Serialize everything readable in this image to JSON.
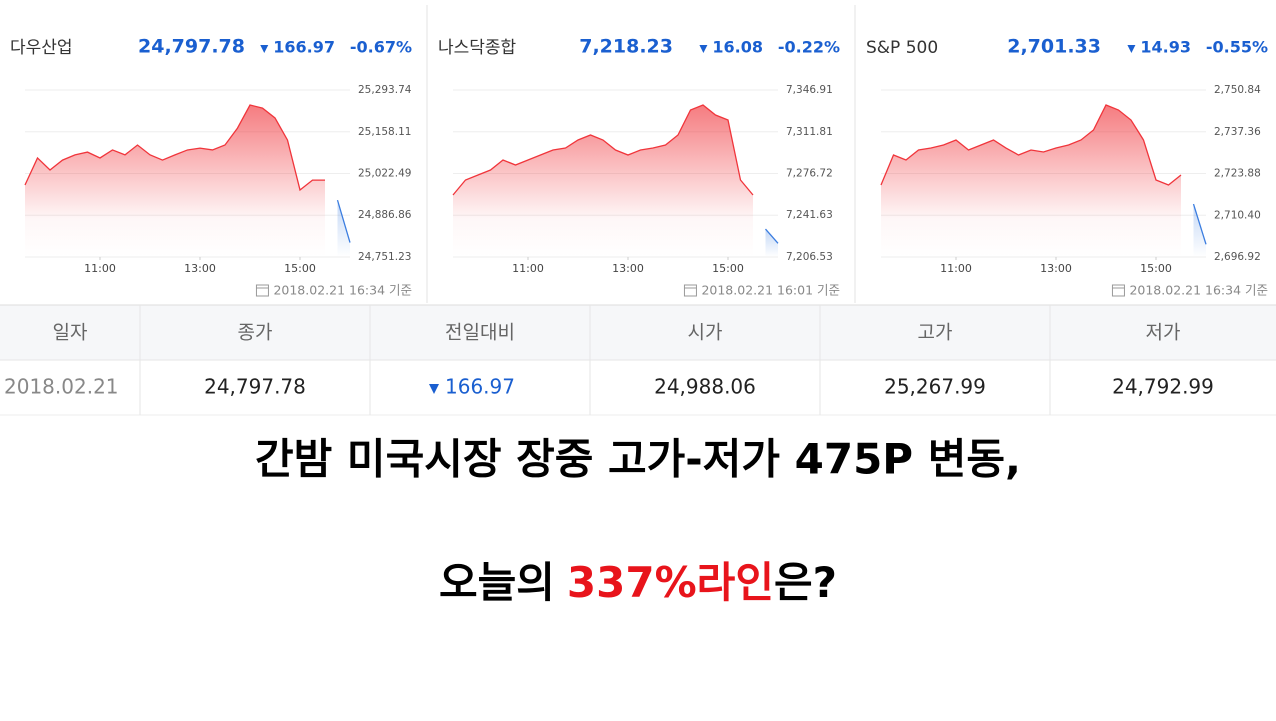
{
  "chart_data": [
    {
      "type": "line",
      "title": "다우산업",
      "price": "24,797.78",
      "change": "166.97",
      "change_pct": "-0.67%",
      "timestamp": "2018.02.21 16:34 기준",
      "x": [
        9.5,
        9.75,
        10,
        10.25,
        10.5,
        10.75,
        11,
        11.25,
        11.5,
        11.75,
        12,
        12.25,
        12.5,
        12.75,
        13,
        13.25,
        13.5,
        13.75,
        14,
        14.25,
        14.5,
        14.75,
        15,
        15.25,
        15.5,
        15.75,
        16
      ],
      "series": [
        {
          "color": "#f0353b",
          "values": [
            24985,
            25073,
            25034,
            25066,
            25083,
            25092,
            25073,
            25099,
            25083,
            25115,
            25083,
            25066,
            25083,
            25099,
            25105,
            25099,
            25115,
            25170,
            25245,
            25235,
            25203,
            25131,
            24969,
            25001,
            25001,
            null,
            null
          ]
        },
        {
          "color": "#3b7de0",
          "values": [
            null,
            null,
            null,
            null,
            null,
            null,
            null,
            null,
            null,
            null,
            null,
            null,
            null,
            null,
            null,
            null,
            null,
            null,
            null,
            null,
            null,
            null,
            null,
            null,
            null,
            24936,
            24798
          ]
        }
      ],
      "xlim": [
        9.5,
        16
      ],
      "xticks": [
        {
          "value": 11,
          "label": "11:00"
        },
        {
          "value": 13,
          "label": "13:00"
        },
        {
          "value": 15,
          "label": "15:00"
        }
      ],
      "ylim": [
        24751.23,
        25293.74
      ],
      "yticks": [
        {
          "value": 24751.23,
          "label": "24,751.23"
        },
        {
          "value": 24886.86,
          "label": "24,886.86"
        },
        {
          "value": 25022.49,
          "label": "25,022.49"
        },
        {
          "value": 25158.11,
          "label": "25,158.11"
        },
        {
          "value": 25293.74,
          "label": "25,293.74"
        }
      ],
      "grid": true
    },
    {
      "type": "line",
      "title": "나스닥종합",
      "price": "7,218.23",
      "change": "16.08",
      "change_pct": "-0.22%",
      "timestamp": "2018.02.21 16:01 기준",
      "x": [
        9.5,
        9.75,
        10,
        10.25,
        10.5,
        10.75,
        11,
        11.25,
        11.5,
        11.75,
        12,
        12.25,
        12.5,
        12.75,
        13,
        13.25,
        13.5,
        13.75,
        14,
        14.25,
        14.5,
        14.75,
        15,
        15.25,
        15.5,
        15.75,
        16
      ],
      "series": [
        {
          "color": "#f0353b",
          "values": [
            7258.64,
            7271.25,
            7275.45,
            7279.65,
            7288.06,
            7283.86,
            7288.06,
            7292.26,
            7296.47,
            7298.15,
            7304.87,
            7309.08,
            7304.87,
            7296.47,
            7292.26,
            7296.47,
            7298.15,
            7300.67,
            7309.08,
            7330.1,
            7334.3,
            7325.89,
            7321.69,
            7271.25,
            7258.64,
            null,
            null
          ]
        },
        {
          "color": "#3b7de0",
          "values": [
            null,
            null,
            null,
            null,
            null,
            null,
            null,
            null,
            null,
            null,
            null,
            null,
            null,
            null,
            null,
            null,
            null,
            null,
            null,
            null,
            null,
            null,
            null,
            null,
            null,
            7230,
            7218
          ]
        }
      ],
      "xlim": [
        9.5,
        16
      ],
      "xticks": [
        {
          "value": 11,
          "label": "11:00"
        },
        {
          "value": 13,
          "label": "13:00"
        },
        {
          "value": 15,
          "label": "15:00"
        }
      ],
      "ylim": [
        7206.53,
        7346.91
      ],
      "yticks": [
        {
          "value": 7206.53,
          "label": "7,206.53"
        },
        {
          "value": 7241.63,
          "label": "7,241.63"
        },
        {
          "value": 7276.72,
          "label": "7,276.72"
        },
        {
          "value": 7311.81,
          "label": "7,311.81"
        },
        {
          "value": 7346.91,
          "label": "7,346.91"
        }
      ],
      "grid": true
    },
    {
      "type": "line",
      "title": "S&P 500",
      "price": "2,701.33",
      "change": "14.93",
      "change_pct": "-0.55%",
      "timestamp": "2018.02.21 16:34 기준",
      "x": [
        9.5,
        9.75,
        10,
        10.25,
        10.5,
        10.75,
        11,
        11.25,
        11.5,
        11.75,
        12,
        12.25,
        12.5,
        12.75,
        13,
        13.25,
        13.5,
        13.75,
        14,
        14.25,
        14.5,
        14.75,
        15,
        15.25,
        15.5,
        15.75,
        16
      ],
      "series": [
        {
          "color": "#f0353b",
          "values": [
            2720.17,
            2729.85,
            2728.24,
            2731.47,
            2732.11,
            2733.08,
            2734.7,
            2731.47,
            2733.08,
            2734.7,
            2732.11,
            2729.85,
            2731.47,
            2730.82,
            2732.11,
            2733.08,
            2734.7,
            2737.93,
            2746,
            2744.38,
            2741.15,
            2734.7,
            2721.78,
            2720.17,
            2723.39,
            null,
            null
          ]
        },
        {
          "color": "#3b7de0",
          "values": [
            null,
            null,
            null,
            null,
            null,
            null,
            null,
            null,
            null,
            null,
            null,
            null,
            null,
            null,
            null,
            null,
            null,
            null,
            null,
            null,
            null,
            null,
            null,
            null,
            null,
            2714,
            2701
          ]
        }
      ],
      "xlim": [
        9.5,
        16
      ],
      "xticks": [
        {
          "value": 11,
          "label": "11:00"
        },
        {
          "value": 13,
          "label": "13:00"
        },
        {
          "value": 15,
          "label": "15:00"
        }
      ],
      "ylim": [
        2696.92,
        2750.84
      ],
      "yticks": [
        {
          "value": 2696.92,
          "label": "2,696.92"
        },
        {
          "value": 2710.4,
          "label": "2,710.40"
        },
        {
          "value": 2723.88,
          "label": "2,723.88"
        },
        {
          "value": 2737.36,
          "label": "2,737.36"
        },
        {
          "value": 2750.84,
          "label": "2,750.84"
        }
      ],
      "grid": true
    }
  ],
  "table": {
    "header": [
      "일자",
      "종가",
      "전일대비",
      "시가",
      "고가",
      "저가"
    ],
    "rows": [
      [
        "2018.02.21",
        "24,797.78",
        "166.97",
        "24,988.06",
        "25,267.99",
        "24,792.99"
      ]
    ]
  },
  "headline": {
    "line1": "간밤 미국시장 장중 고가-저가 475P 변동,",
    "line2_start": "오늘의",
    "line2_highlight": "337%라인",
    "line2_end": "은?"
  }
}
